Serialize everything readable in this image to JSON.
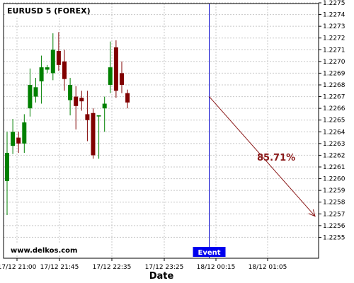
{
  "chart_data": {
    "type": "candlestick",
    "title": "EURUSD 5 (FOREX)",
    "watermark": "www.delkos.com",
    "xlabel": "Date",
    "ylim": [
      1.2254,
      1.2275
    ],
    "y_ticks": [
      "1.2255",
      "1.2256",
      "1.2257",
      "1.2258",
      "1.2259",
      "1.2260",
      "1.2261",
      "1.2262",
      "1.2263",
      "1.2264",
      "1.2265",
      "1.2266",
      "1.2267",
      "1.2268",
      "1.2269",
      "1.2270",
      "1.2271",
      "1.2272",
      "1.2273",
      "1.2274",
      "1.2275"
    ],
    "x_ticks": [
      "17/12 21:00",
      "17/12 21:45",
      "17/12 22:35",
      "17/12 23:25",
      "18/12 00:15",
      "18/12 01:05"
    ],
    "grid": true,
    "colors": {
      "up": "#008000",
      "down": "#800000",
      "event": "#0000cc",
      "arrow": "#8b1a1a"
    },
    "candles": [
      {
        "o": 1.22598,
        "h": 1.2264,
        "l": 1.22569,
        "c": 1.22622
      },
      {
        "o": 1.22628,
        "h": 1.22651,
        "l": 1.22621,
        "c": 1.2264
      },
      {
        "o": 1.22635,
        "h": 1.2264,
        "l": 1.22622,
        "c": 1.2263
      },
      {
        "o": 1.2263,
        "h": 1.22655,
        "l": 1.22622,
        "c": 1.22648
      },
      {
        "o": 1.2266,
        "h": 1.22694,
        "l": 1.22653,
        "c": 1.2268
      },
      {
        "o": 1.2267,
        "h": 1.22686,
        "l": 1.22665,
        "c": 1.22678
      },
      {
        "o": 1.22683,
        "h": 1.22705,
        "l": 1.22664,
        "c": 1.22695
      },
      {
        "o": 1.22693,
        "h": 1.22697,
        "l": 1.2269,
        "c": 1.22695
      },
      {
        "o": 1.2269,
        "h": 1.22724,
        "l": 1.22684,
        "c": 1.2271
      },
      {
        "o": 1.22709,
        "h": 1.22725,
        "l": 1.22692,
        "c": 1.22697
      },
      {
        "o": 1.227,
        "h": 1.2271,
        "l": 1.22675,
        "c": 1.22685
      },
      {
        "o": 1.22667,
        "h": 1.22686,
        "l": 1.22654,
        "c": 1.2268
      },
      {
        "o": 1.2267,
        "h": 1.22679,
        "l": 1.22642,
        "c": 1.22662
      },
      {
        "o": 1.22669,
        "h": 1.22675,
        "l": 1.22658,
        "c": 1.22666
      },
      {
        "o": 1.22655,
        "h": 1.22675,
        "l": 1.22632,
        "c": 1.2265
      },
      {
        "o": 1.22656,
        "h": 1.2266,
        "l": 1.22617,
        "c": 1.2262
      },
      {
        "o": 1.22654,
        "h": 1.22654,
        "l": 1.22617,
        "c": 1.22654
      },
      {
        "o": 1.2266,
        "h": 1.2267,
        "l": 1.2264,
        "c": 1.22664
      },
      {
        "o": 1.2268,
        "h": 1.22717,
        "l": 1.22673,
        "c": 1.22695
      },
      {
        "o": 1.22712,
        "h": 1.22718,
        "l": 1.22669,
        "c": 1.22675
      },
      {
        "o": 1.2269,
        "h": 1.227,
        "l": 1.22673,
        "c": 1.2268
      },
      {
        "o": 1.22673,
        "h": 1.22676,
        "l": 1.2266,
        "c": 1.22665
      }
    ],
    "event": {
      "label": "Event",
      "x_between": [
        "17/12 23:25",
        "18/12 00:15"
      ],
      "position": 0.87
    },
    "forecast": {
      "label": "85.71%",
      "from": 1.2267,
      "to": 1.22568,
      "direction": "down"
    }
  }
}
